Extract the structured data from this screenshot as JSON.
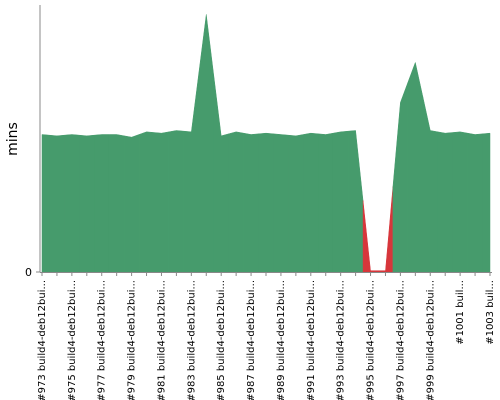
{
  "chart_data": {
    "type": "area",
    "y_label": "mins",
    "categories": [
      "#973 build4-deb12bui...",
      null,
      "#975 build4-deb12bui...",
      null,
      "#977 build4-deb12bui...",
      null,
      "#979 build4-deb12bui...",
      null,
      "#981 build4-deb12bui...",
      null,
      "#983 build4-deb12bui...",
      null,
      "#985 build4-deb12bui...",
      null,
      "#987 build4-deb12bui...",
      null,
      "#989 build4-deb12bui...",
      null,
      "#991 build4-deb12bui...",
      null,
      "#993 build4-deb12bui...",
      null,
      "#995 build4-deb12bui...",
      null,
      "#997 build4-deb12bui...",
      null,
      "#999 build4-deb12bui...",
      null,
      "#1001 buil...",
      null,
      "#1003 buil..."
    ],
    "values": [
      10.3,
      10.2,
      10.3,
      10.2,
      10.3,
      10.3,
      10.1,
      10.5,
      10.4,
      10.6,
      10.5,
      19.3,
      10.2,
      10.5,
      10.3,
      10.4,
      10.3,
      10.2,
      10.4,
      10.3,
      10.5,
      10.6,
      0.1,
      0.1,
      12.7,
      15.7,
      10.6,
      10.4,
      10.5,
      10.3,
      10.4
    ],
    "point_colors": [
      "#469b6c",
      "#469b6c",
      "#469b6c",
      "#469b6c",
      "#469b6c",
      "#469b6c",
      "#469b6c",
      "#469b6c",
      "#469b6c",
      "#469b6c",
      "#469b6c",
      "#469b6c",
      "#469b6c",
      "#469b6c",
      "#469b6c",
      "#469b6c",
      "#469b6c",
      "#469b6c",
      "#469b6c",
      "#469b6c",
      "#469b6c",
      "#469b6c",
      "#d7363b",
      "#d7363b",
      "#469b6c",
      "#469b6c",
      "#469b6c",
      "#469b6c",
      "#469b6c",
      "#469b6c",
      "#469b6c"
    ],
    "ylim": [
      0,
      20
    ],
    "yticks": [
      0
    ]
  }
}
